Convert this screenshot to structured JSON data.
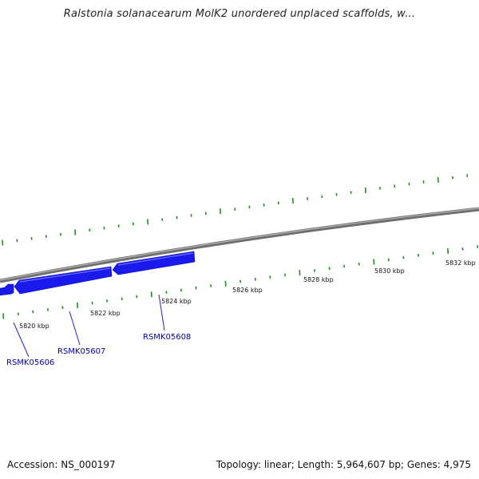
{
  "title": "Ralstonia solanacearum MolK2 unordered unplaced scaffolds, w...",
  "footer": {
    "accession": "Accession: NS_000197",
    "summary": "Topology: linear; Length: 5,964,607 bp; Genes: 4,975"
  },
  "scale_labels": [
    "5820 kbp",
    "5822 kbp",
    "5824 kbp",
    "5826 kbp",
    "5828 kbp",
    "5830 kbp",
    "5832 kbp"
  ],
  "genes": [
    {
      "id": "RSMK05606"
    },
    {
      "id": "RSMK05607"
    },
    {
      "id": "RSMK05608"
    }
  ],
  "colors": {
    "backbone": "#808080",
    "gene_fill": "#1a1aee",
    "tick": "#1f8f1f",
    "gene_label": "#0000aa"
  }
}
